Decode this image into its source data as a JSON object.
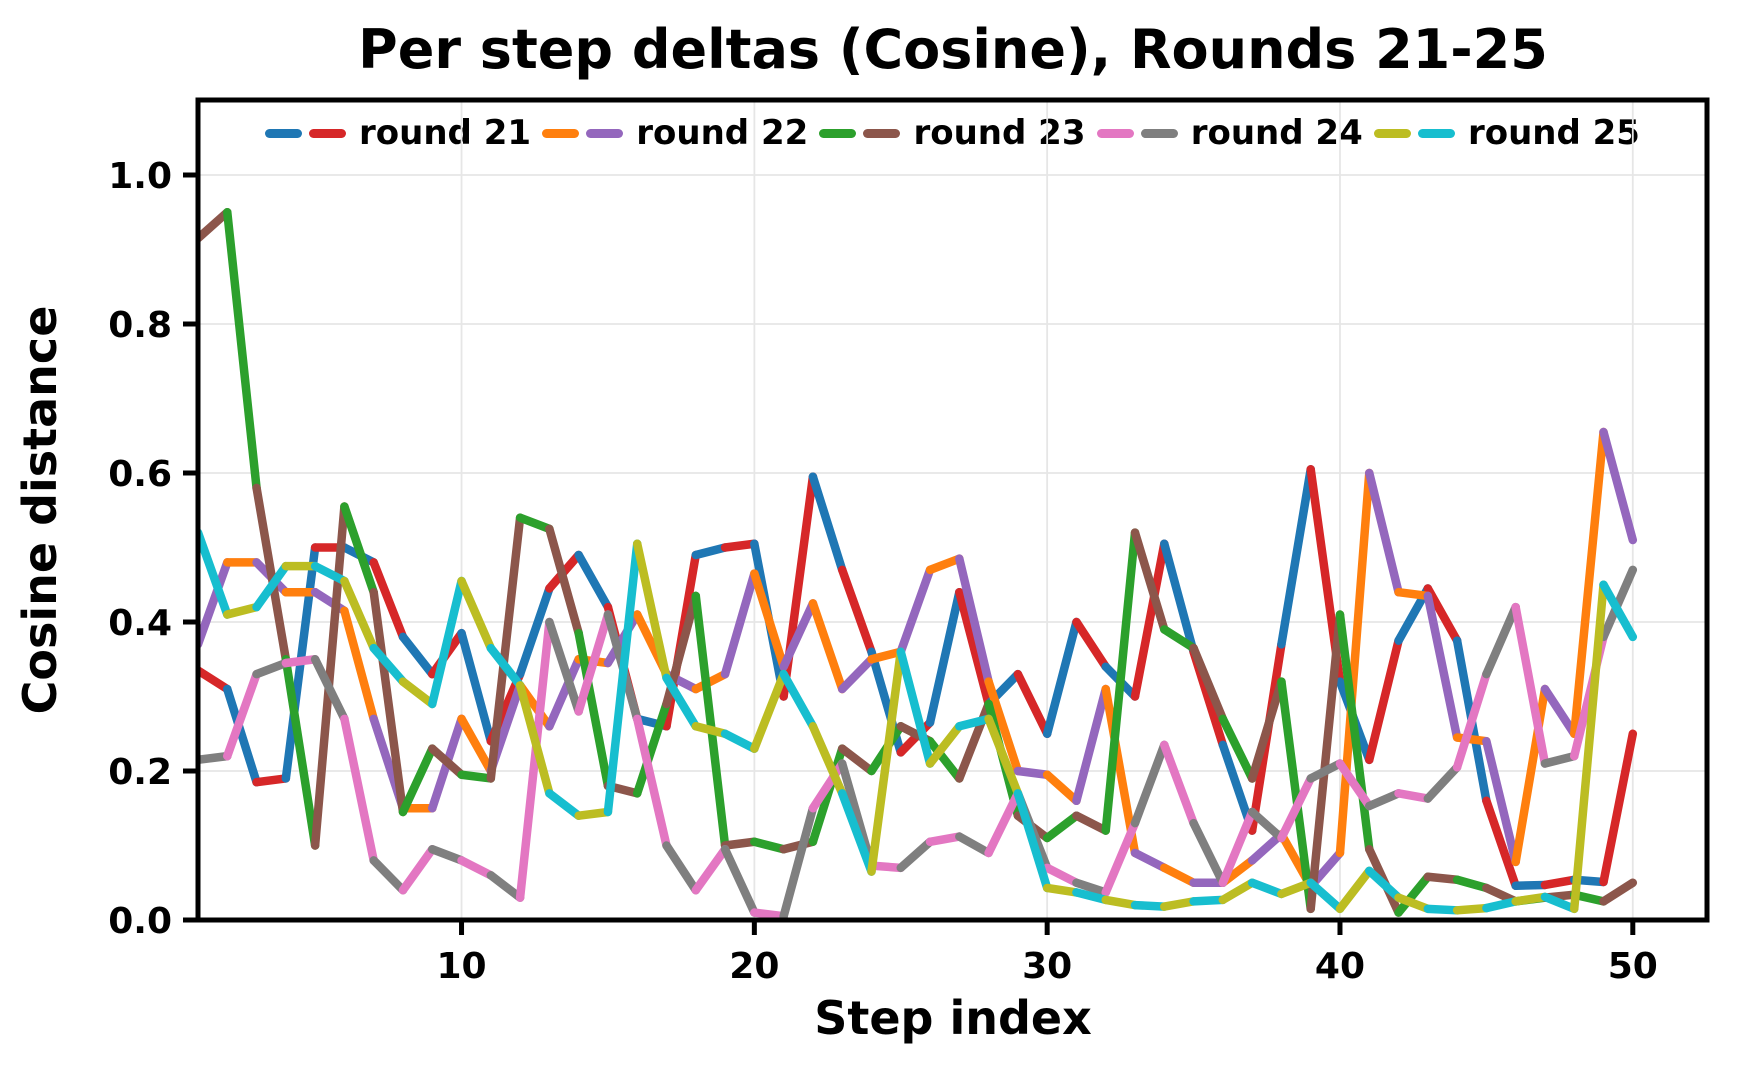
{
  "chart_data": {
    "type": "line",
    "title": "Per step deltas (Cosine), Rounds 21-25",
    "xlabel": "Step index",
    "ylabel": "Cosine distance",
    "x_ticks": [
      10,
      20,
      30,
      40,
      50
    ],
    "y_tick_labels": [
      "0.0",
      "0.2",
      "0.4",
      "0.6",
      "0.8",
      "1.0"
    ],
    "xlim": [
      1,
      52.5
    ],
    "ylim": [
      0,
      1.1
    ],
    "grid": true,
    "grid_color": "#e6e6e6",
    "axis_color": "#000000",
    "background_color": "#ffffff",
    "legend_position": "top",
    "line_style": "each series alternates between its two legend colors segment by segment",
    "x": [
      1,
      2,
      3,
      4,
      5,
      6,
      7,
      8,
      9,
      10,
      11,
      12,
      13,
      14,
      15,
      16,
      17,
      18,
      19,
      20,
      21,
      22,
      23,
      24,
      25,
      26,
      27,
      28,
      29,
      30,
      31,
      32,
      33,
      34,
      35,
      36,
      37,
      38,
      39,
      40,
      41,
      42,
      43,
      44,
      45,
      46,
      47,
      48,
      49,
      50
    ],
    "series": [
      {
        "name": "round 21",
        "colors": [
          "#1f77b4",
          "#d62728"
        ],
        "values": [
          0.335,
          0.31,
          0.185,
          0.19,
          0.5,
          0.5,
          0.48,
          0.38,
          0.33,
          0.385,
          0.24,
          0.33,
          0.445,
          0.49,
          0.42,
          0.27,
          0.26,
          0.49,
          0.5,
          0.505,
          0.3,
          0.595,
          0.47,
          0.36,
          0.225,
          0.265,
          0.44,
          0.29,
          0.33,
          0.25,
          0.4,
          0.34,
          0.3,
          0.505,
          0.36,
          0.235,
          0.12,
          0.37,
          0.605,
          0.32,
          0.215,
          0.375,
          0.445,
          0.375,
          0.16,
          0.046,
          0.047,
          0.054,
          0.051,
          0.25
        ]
      },
      {
        "name": "round 22",
        "colors": [
          "#ff7f0e",
          "#9467bd"
        ],
        "values": [
          0.37,
          0.48,
          0.48,
          0.44,
          0.44,
          0.415,
          0.27,
          0.15,
          0.15,
          0.27,
          0.2,
          0.315,
          0.26,
          0.35,
          0.345,
          0.41,
          0.33,
          0.31,
          0.33,
          0.465,
          0.34,
          0.425,
          0.31,
          0.35,
          0.36,
          0.47,
          0.485,
          0.32,
          0.2,
          0.195,
          0.16,
          0.31,
          0.09,
          0.07,
          0.05,
          0.05,
          0.08,
          0.115,
          0.045,
          0.09,
          0.6,
          0.44,
          0.435,
          0.245,
          0.24,
          0.078,
          0.31,
          0.25,
          0.655,
          0.51
        ]
      },
      {
        "name": "round 23",
        "colors": [
          "#2ca02c",
          "#8c564b"
        ],
        "values": [
          0.915,
          0.95,
          0.58,
          0.35,
          0.1,
          0.555,
          0.44,
          0.145,
          0.23,
          0.195,
          0.19,
          0.54,
          0.525,
          0.385,
          0.18,
          0.17,
          0.29,
          0.435,
          0.1,
          0.105,
          0.095,
          0.105,
          0.23,
          0.2,
          0.26,
          0.24,
          0.19,
          0.29,
          0.14,
          0.11,
          0.14,
          0.12,
          0.52,
          0.39,
          0.365,
          0.27,
          0.19,
          0.32,
          0.015,
          0.41,
          0.095,
          0.01,
          0.058,
          0.054,
          0.043,
          0.025,
          0.03,
          0.034,
          0.025,
          0.05
        ]
      },
      {
        "name": "round 24",
        "colors": [
          "#e377c2",
          "#7f7f7f"
        ],
        "values": [
          0.215,
          0.22,
          0.33,
          0.345,
          0.35,
          0.27,
          0.08,
          0.04,
          0.095,
          0.08,
          0.06,
          0.03,
          0.4,
          0.28,
          0.41,
          0.27,
          0.1,
          0.04,
          0.095,
          0.01,
          0.005,
          0.15,
          0.21,
          0.073,
          0.07,
          0.105,
          0.112,
          0.09,
          0.17,
          0.07,
          0.05,
          0.037,
          0.13,
          0.235,
          0.13,
          0.05,
          0.145,
          0.11,
          0.19,
          0.21,
          0.153,
          0.17,
          0.163,
          0.205,
          0.33,
          0.42,
          0.21,
          0.22,
          0.38,
          0.47
        ]
      },
      {
        "name": "round 25",
        "colors": [
          "#bcbd22",
          "#17becf"
        ],
        "values": [
          0.52,
          0.41,
          0.42,
          0.475,
          0.475,
          0.455,
          0.365,
          0.32,
          0.29,
          0.455,
          0.365,
          0.315,
          0.17,
          0.14,
          0.145,
          0.505,
          0.325,
          0.26,
          0.25,
          0.23,
          0.33,
          0.26,
          0.17,
          0.065,
          0.36,
          0.21,
          0.26,
          0.27,
          0.17,
          0.043,
          0.037,
          0.027,
          0.02,
          0.018,
          0.025,
          0.027,
          0.05,
          0.035,
          0.05,
          0.015,
          0.066,
          0.03,
          0.015,
          0.013,
          0.016,
          0.025,
          0.031,
          0.015,
          0.45,
          0.38
        ]
      }
    ]
  }
}
